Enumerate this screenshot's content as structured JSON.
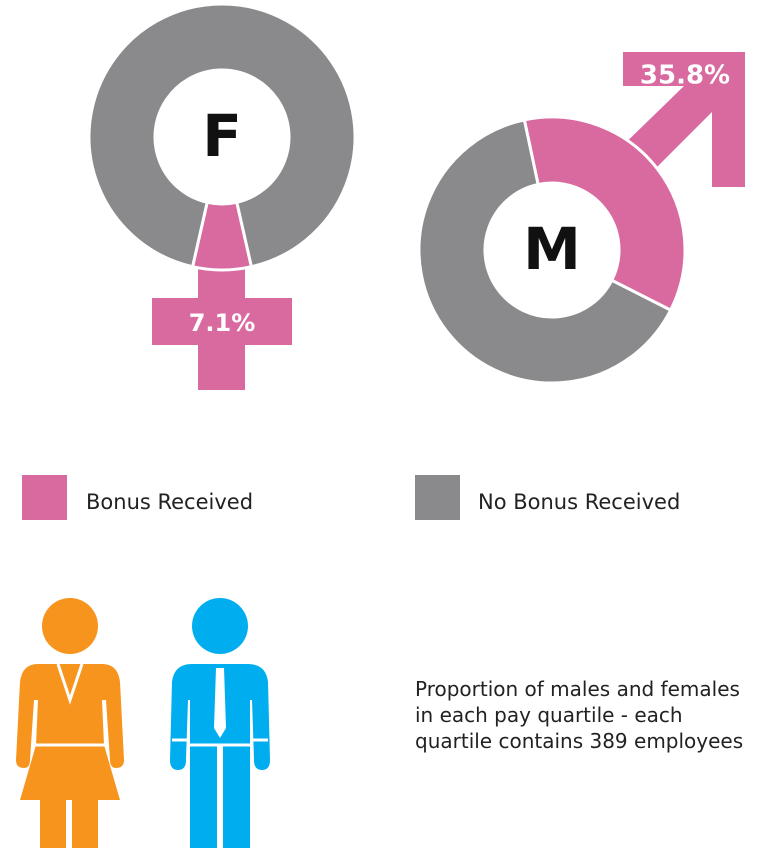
{
  "chart_data": [
    {
      "type": "donut",
      "center_label": "F",
      "values": [
        7.1,
        92.9
      ],
      "value_labels": [
        "7.1%",
        null
      ],
      "colors": [
        "#d96aa0",
        "#8a8a8c"
      ]
    },
    {
      "type": "donut",
      "center_label": "M",
      "values": [
        35.8,
        64.2
      ],
      "value_labels": [
        "35.8%",
        null
      ],
      "colors": [
        "#d96aa0",
        "#8a8a8c"
      ]
    }
  ],
  "legend": {
    "items": [
      {
        "label": "Bonus Received",
        "color": "#d96aa0"
      },
      {
        "label": "No Bonus Received",
        "color": "#8a8a8c"
      }
    ]
  },
  "note": "Proportion of males and females in each pay quartile - each quartile contains 389 employees"
}
